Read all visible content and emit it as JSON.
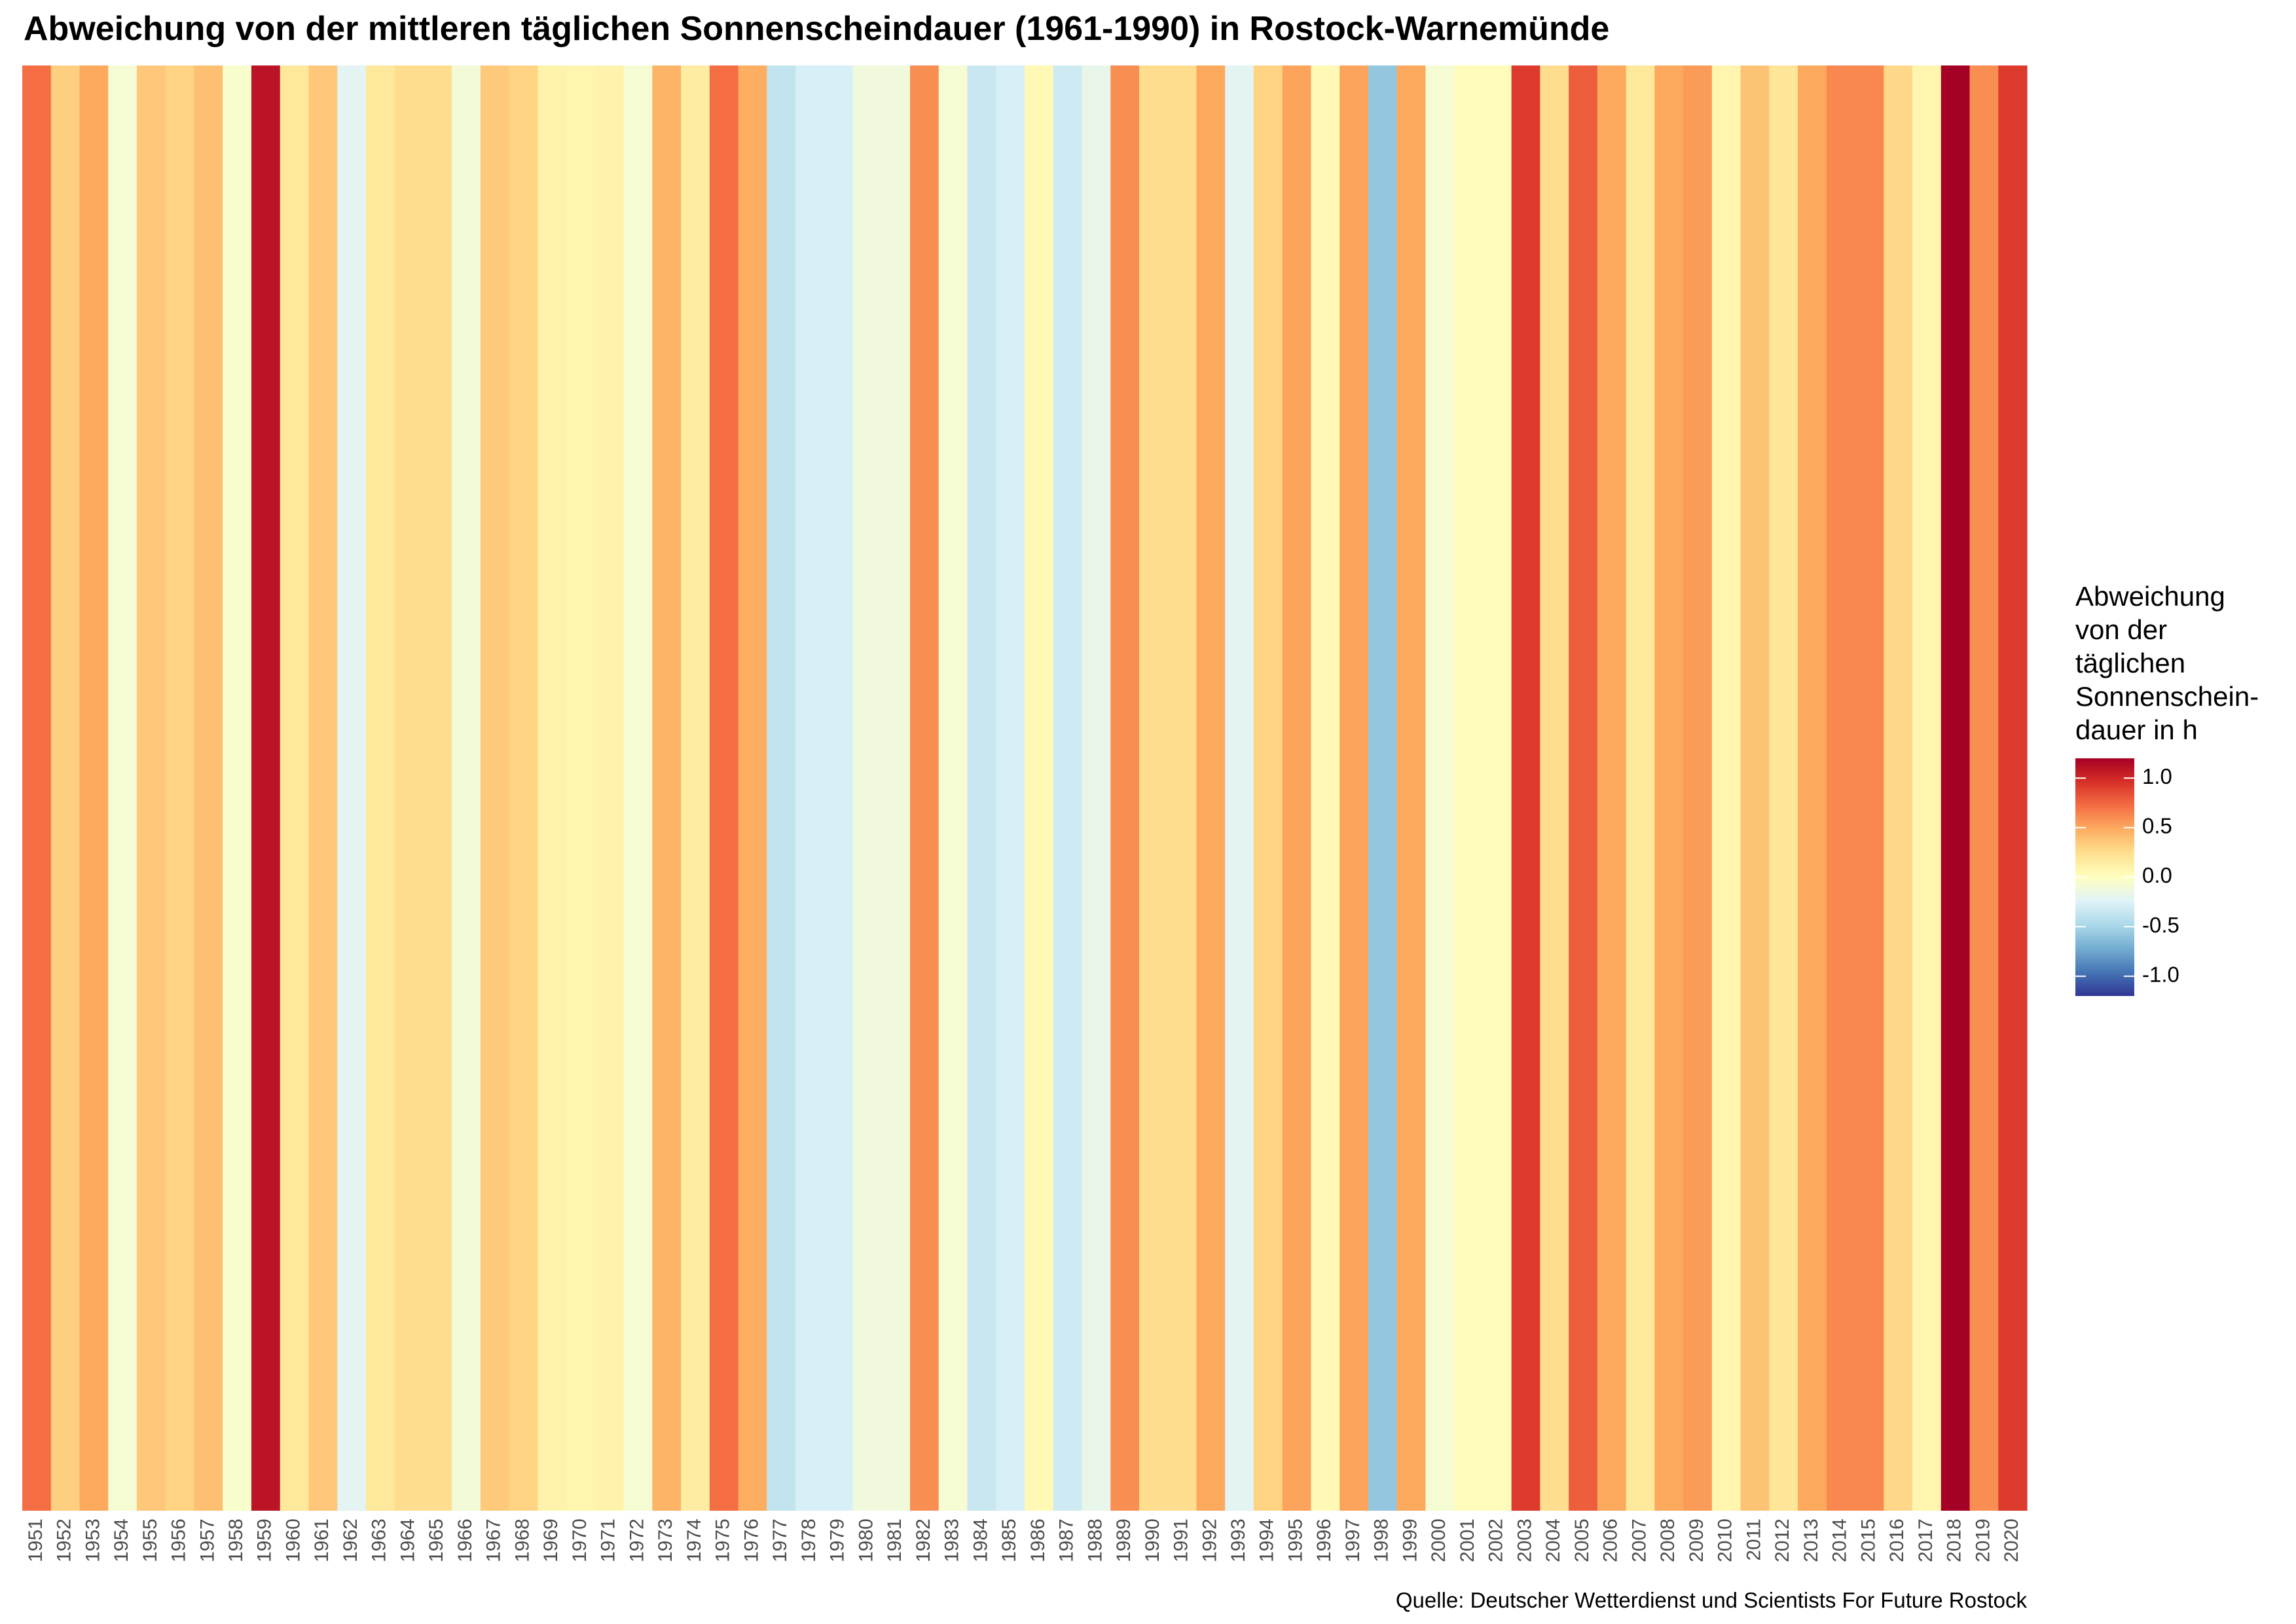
{
  "chart_data": {
    "type": "heatmap",
    "title": "Abweichung von der mittleren täglichen Sonnenscheindauer (1961-1990) in Rostock-Warnemünde",
    "xlabel": "",
    "ylabel": "",
    "categories": [
      "1951",
      "1952",
      "1953",
      "1954",
      "1955",
      "1956",
      "1957",
      "1958",
      "1959",
      "1960",
      "1961",
      "1962",
      "1963",
      "1964",
      "1965",
      "1966",
      "1967",
      "1968",
      "1969",
      "1970",
      "1971",
      "1972",
      "1973",
      "1974",
      "1975",
      "1976",
      "1977",
      "1978",
      "1979",
      "1980",
      "1981",
      "1982",
      "1983",
      "1984",
      "1985",
      "1986",
      "1987",
      "1988",
      "1989",
      "1990",
      "1991",
      "1992",
      "1993",
      "1994",
      "1995",
      "1996",
      "1997",
      "1998",
      "1999",
      "2000",
      "2001",
      "2002",
      "2003",
      "2004",
      "2005",
      "2006",
      "2007",
      "2008",
      "2009",
      "2010",
      "2011",
      "2012",
      "2013",
      "2014",
      "2015",
      "2016",
      "2017",
      "2018",
      "2019",
      "2020"
    ],
    "values": [
      0.72,
      0.32,
      0.5,
      -0.08,
      0.36,
      0.3,
      0.4,
      -0.05,
      1.1,
      0.18,
      0.36,
      -0.22,
      0.18,
      0.25,
      0.25,
      -0.1,
      0.35,
      0.3,
      0.1,
      0.08,
      0.1,
      -0.08,
      0.45,
      0.15,
      0.72,
      0.48,
      -0.38,
      -0.28,
      -0.28,
      -0.12,
      -0.12,
      0.6,
      -0.08,
      -0.35,
      -0.28,
      0.05,
      -0.32,
      -0.18,
      0.6,
      0.25,
      0.25,
      0.5,
      -0.22,
      0.3,
      0.52,
      0.05,
      0.52,
      -0.58,
      0.5,
      -0.08,
      0.02,
      0.02,
      0.92,
      0.25,
      0.78,
      0.5,
      0.18,
      0.5,
      0.55,
      0.08,
      0.38,
      0.2,
      0.5,
      0.62,
      0.62,
      0.28,
      0.08,
      1.3,
      0.6,
      0.92
    ],
    "color_scale": {
      "range": [
        -1.2,
        1.2
      ],
      "ticks": [
        1.0,
        0.5,
        0.0,
        -0.5,
        -1.0
      ],
      "tick_labels": [
        "1.0",
        "0.5",
        "0.0",
        "-0.5",
        "-1.0"
      ],
      "palette": [
        "#313695",
        "#4575b4",
        "#74add1",
        "#abd9e9",
        "#e0f3f8",
        "#ffffbf",
        "#fee090",
        "#fdae61",
        "#f46d43",
        "#d73027",
        "#a50026"
      ]
    },
    "legend": {
      "position": "right",
      "title_lines": [
        "Abweichung",
        "von der",
        "täglichen",
        "Sonnenschein-",
        "dauer in h"
      ]
    },
    "grid": false
  },
  "caption": "Quelle: Deutscher Wetterdienst und Scientists For Future Rostock"
}
